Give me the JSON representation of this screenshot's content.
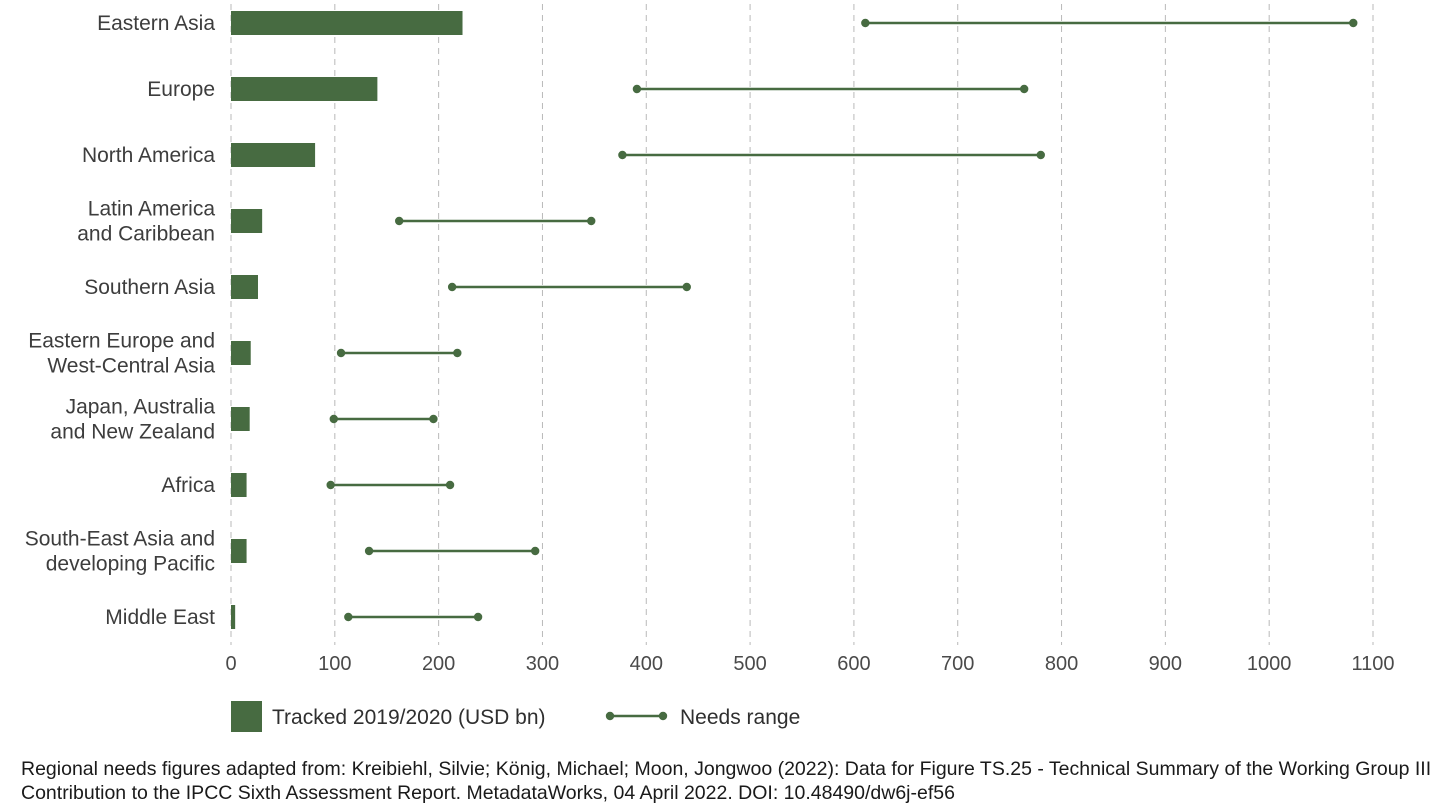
{
  "chart_data": {
    "type": "bar",
    "orientation": "horizontal",
    "categories": [
      "Eastern Asia",
      "Europe",
      "North America",
      "Latin America\nand Caribbean",
      "Southern Asia",
      "Eastern Europe and\nWest-Central Asia",
      "Japan, Australia\nand New Zealand",
      "Africa",
      "South-East Asia and\ndeveloping Pacific",
      "Middle East"
    ],
    "series": [
      {
        "name": "Tracked 2019/2020 (USD bn)",
        "kind": "bar",
        "color": "#476b41",
        "values": [
          223,
          141,
          81,
          30,
          26,
          19,
          18,
          15,
          15,
          4
        ]
      },
      {
        "name": "Needs range",
        "kind": "range",
        "color": "#476b41",
        "ranges": [
          [
            611,
            1081
          ],
          [
            391,
            764
          ],
          [
            377,
            780
          ],
          [
            162,
            347
          ],
          [
            213,
            439
          ],
          [
            106,
            218
          ],
          [
            99,
            195
          ],
          [
            96,
            211
          ],
          [
            133,
            293
          ],
          [
            113,
            238
          ]
        ]
      }
    ],
    "xlim": [
      0,
      1100
    ],
    "xticks": [
      0,
      100,
      200,
      300,
      400,
      500,
      600,
      700,
      800,
      900,
      1000,
      1100
    ],
    "grid": "vertical-dashed",
    "legend_position": "bottom-left",
    "xlabel": "",
    "ylabel": "",
    "title": ""
  },
  "source_note": "Regional needs figures adapted from: Kreibiehl, Silvie; König, Michael; Moon, Jongwoo (2022): Data for Figure TS.25 - Technical Summary of the Working Group III Contribution to the IPCC Sixth Assessment Report. MetadataWorks, 04 April 2022. DOI: 10.48490/dw6j-ef56",
  "colors": {
    "accent": "#476b41",
    "grid": "#b9b9b9",
    "text": "#3d3d3d"
  }
}
